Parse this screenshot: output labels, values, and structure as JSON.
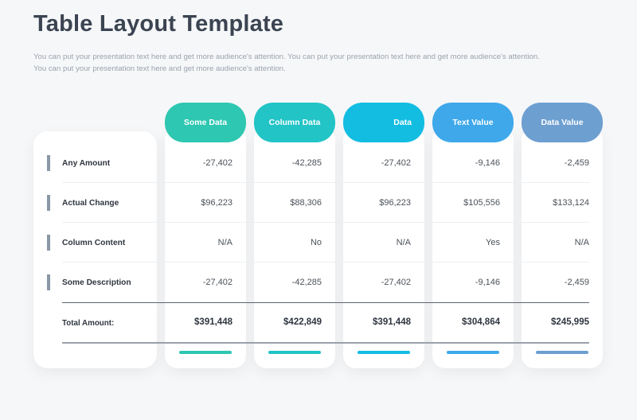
{
  "title": "Table Layout Template",
  "subtitle": "You can put your presentation text here and get more audience's attention. You can put your presentation text here and get more audience's attention. You can put your presentation text here and get more audience's attention.",
  "columns": [
    {
      "label": "Some Data",
      "color": "#2ec7b1"
    },
    {
      "label": "Column Data",
      "color": "#22c4c6"
    },
    {
      "label": "Data",
      "color": "#12bde1"
    },
    {
      "label": "Text Value",
      "color": "#3ea8ea"
    },
    {
      "label": "Data Value",
      "color": "#6d9fd0"
    }
  ],
  "rows": [
    {
      "label": "Any Amount",
      "values": [
        "-27,402",
        "-42,285",
        "-27,402",
        "-9,146",
        "-2,459"
      ]
    },
    {
      "label": "Actual Change",
      "values": [
        "$96,223",
        "$88,306",
        "$96,223",
        "$105,556",
        "$133,124"
      ]
    },
    {
      "label": "Column Content",
      "values": [
        "N/A",
        "No",
        "N/A",
        "Yes",
        "N/A"
      ]
    },
    {
      "label": "Some Description",
      "values": [
        "-27,402",
        "-42,285",
        "-27,402",
        "-9,146",
        "-2,459"
      ]
    }
  ],
  "total": {
    "label": "Total Amount:",
    "values": [
      "$391,448",
      "$422,849",
      "$391,448",
      "$304,864",
      "$245,995"
    ]
  }
}
